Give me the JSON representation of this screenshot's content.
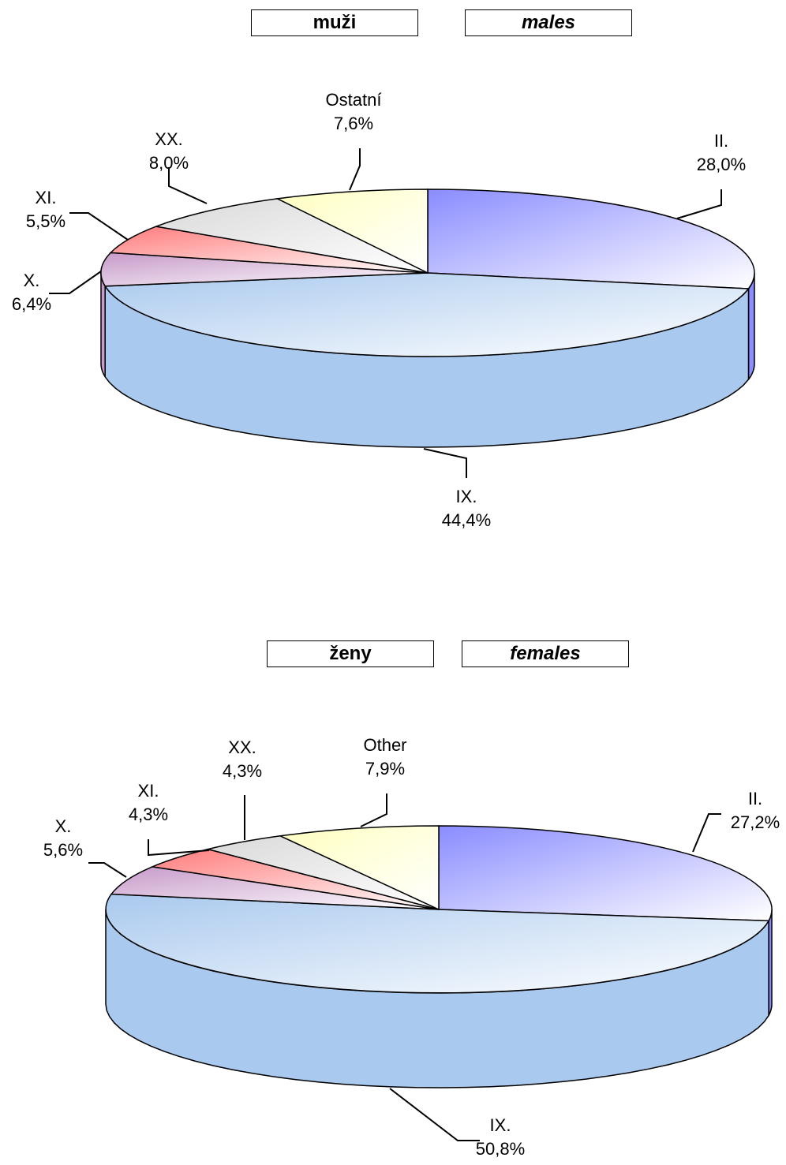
{
  "chart_data": [
    {
      "type": "pie",
      "title": "muži",
      "subtitle": "males",
      "slices": [
        {
          "label": "II.",
          "value": 28.0,
          "value_label": "28,0%",
          "color": "#8a8cff"
        },
        {
          "label": "IX.",
          "value": 44.4,
          "value_label": "44,4%",
          "color": "#a9c9ee"
        },
        {
          "label": "X.",
          "value": 6.4,
          "value_label": "6,4%",
          "color": "#c79ac9"
        },
        {
          "label": "XI.",
          "value": 5.5,
          "value_label": "5,5%",
          "color": "#ff7b7b"
        },
        {
          "label": "XX.",
          "value": 8.0,
          "value_label": "8,0%",
          "color": "#d9d9d9"
        },
        {
          "label": "Ostatní",
          "value": 7.6,
          "value_label": "7,6%",
          "color": "#ffffc0"
        }
      ]
    },
    {
      "type": "pie",
      "title": "ženy",
      "subtitle": "females",
      "slices": [
        {
          "label": "II.",
          "value": 27.2,
          "value_label": "27,2%",
          "color": "#8a8cff"
        },
        {
          "label": "IX.",
          "value": 50.8,
          "value_label": "50,8%",
          "color": "#a9c9ee"
        },
        {
          "label": "X.",
          "value": 5.6,
          "value_label": "5,6%",
          "color": "#c79ac9"
        },
        {
          "label": "XI.",
          "value": 4.3,
          "value_label": "4,3%",
          "color": "#ff7b7b"
        },
        {
          "label": "XX.",
          "value": 4.3,
          "value_label": "4,3%",
          "color": "#d9d9d9"
        },
        {
          "label": "Other",
          "value": 7.9,
          "value_label": "7,9%",
          "color": "#ffffc0"
        }
      ]
    }
  ]
}
